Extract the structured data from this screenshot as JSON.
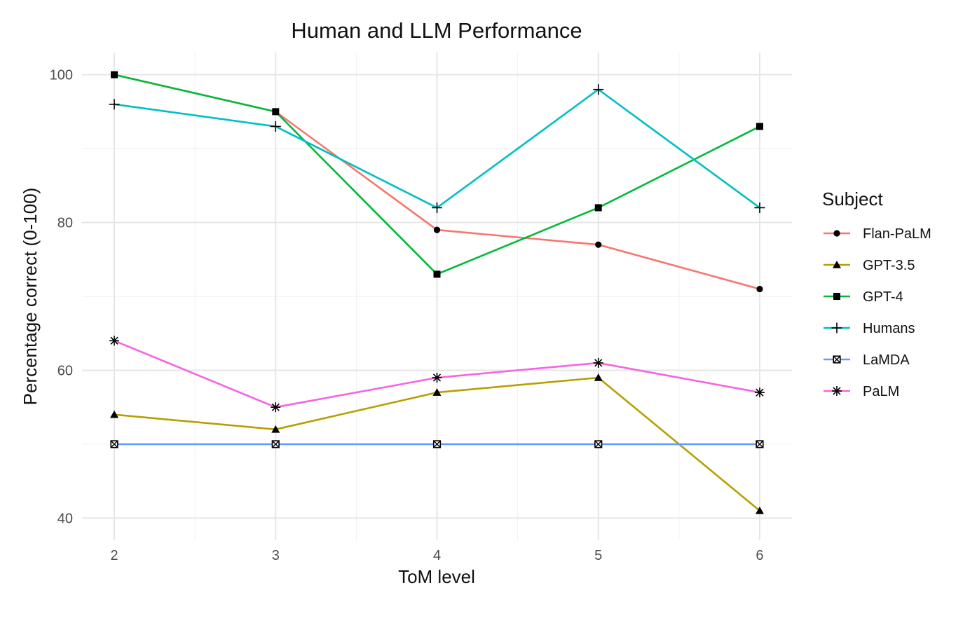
{
  "chart_data": {
    "type": "line",
    "title": "Human and LLM Performance",
    "xlabel": "ToM level",
    "ylabel": "Percentage correct (0-100)",
    "x": [
      2,
      3,
      4,
      5,
      6
    ],
    "x_ticks": [
      "2",
      "3",
      "4",
      "5",
      "6"
    ],
    "y_ticks": [
      "40",
      "60",
      "80",
      "100"
    ],
    "xlim": [
      1.8,
      6.2
    ],
    "ylim": [
      37,
      103
    ],
    "grid": true,
    "legend": {
      "title": "Subject",
      "position": "right"
    },
    "series": [
      {
        "name": "Flan-PaLM",
        "color": "#F8766D",
        "marker": "circle",
        "values": [
          100,
          95,
          79,
          77,
          71
        ]
      },
      {
        "name": "GPT-3.5",
        "color": "#B79F00",
        "marker": "triangle",
        "values": [
          54,
          52,
          57,
          59,
          41
        ]
      },
      {
        "name": "GPT-4",
        "color": "#00BA38",
        "marker": "square",
        "values": [
          100,
          95,
          73,
          82,
          93
        ]
      },
      {
        "name": "Humans",
        "color": "#00BFC4",
        "marker": "plus",
        "values": [
          96,
          93,
          82,
          98,
          82
        ]
      },
      {
        "name": "LaMDA",
        "color": "#619CFF",
        "marker": "boxx",
        "values": [
          50,
          50,
          50,
          50,
          50
        ]
      },
      {
        "name": "PaLM",
        "color": "#F564E3",
        "marker": "asterisk",
        "values": [
          64,
          55,
          59,
          61,
          57
        ]
      }
    ]
  }
}
